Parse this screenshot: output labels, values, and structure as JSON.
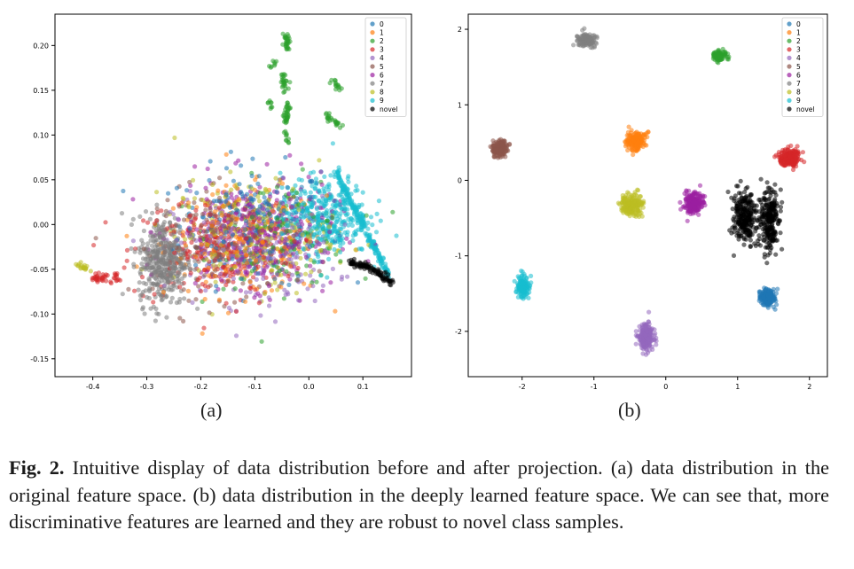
{
  "figure": {
    "subcaption_a": "(a)",
    "subcaption_b": "(b)",
    "caption_label": "Fig. 2.",
    "caption_text": "Intuitive display of data distribution before and after projection. (a) data distri­bution in the original feature space. (b) data distribution in the deeply learned feature space. We can see that, more discriminative features are learned and they are robust to novel class samples."
  },
  "colors": {
    "0": "#1f77b4",
    "1": "#ff7f0e",
    "2": "#2ca02c",
    "3": "#d62728",
    "4": "#9467bd",
    "5": "#8c564b",
    "6": "#9b1fa0",
    "7": "#7f7f7f",
    "8": "#bcbd22",
    "9": "#17becf",
    "novel": "#000000"
  },
  "chart_data": [
    {
      "type": "scatter",
      "panel": "a",
      "xlim": [
        -0.47,
        0.19
      ],
      "ylim": [
        -0.17,
        0.235
      ],
      "xticks": [
        "-0.4",
        "-0.3",
        "-0.2",
        "-0.1",
        "0.0",
        "0.1"
      ],
      "xtick_values": [
        -0.4,
        -0.3,
        -0.2,
        -0.1,
        0.0,
        0.1
      ],
      "yticks": [
        "0.20",
        "0.15",
        "0.10",
        "0.05",
        "0.00",
        "-0.05",
        "-0.10",
        "-0.15"
      ],
      "ytick_values": [
        0.2,
        0.15,
        0.1,
        0.05,
        0.0,
        -0.05,
        -0.1,
        -0.15
      ],
      "legend": [
        "0",
        "1",
        "2",
        "3",
        "4",
        "5",
        "6",
        "7",
        "8",
        "9",
        "novel"
      ],
      "legend_position": "top-right",
      "grid": false,
      "clusters": [
        {
          "name": "0",
          "center": [
            -0.1,
            0.0
          ],
          "spread": [
            0.14,
            0.065
          ],
          "n": 220
        },
        {
          "name": "1",
          "center": [
            -0.12,
            -0.02
          ],
          "spread": [
            0.15,
            0.06
          ],
          "n": 220
        },
        {
          "name": "2",
          "center": [
            -0.05,
            -0.01
          ],
          "spread": [
            0.13,
            0.06
          ],
          "n": 120
        },
        {
          "name": "3",
          "center": [
            -0.18,
            -0.03
          ],
          "spread": [
            0.15,
            0.06
          ],
          "n": 220
        },
        {
          "name": "4",
          "center": [
            -0.1,
            -0.03
          ],
          "spread": [
            0.15,
            0.06
          ],
          "n": 240
        },
        {
          "name": "5",
          "center": [
            -0.15,
            -0.02
          ],
          "spread": [
            0.13,
            0.06
          ],
          "n": 200
        },
        {
          "name": "6",
          "center": [
            -0.1,
            -0.01
          ],
          "spread": [
            0.15,
            0.06
          ],
          "n": 320
        },
        {
          "name": "7",
          "center": [
            -0.27,
            -0.04
          ],
          "spread": [
            0.045,
            0.05
          ],
          "n": 420
        },
        {
          "name": "8",
          "center": [
            -0.1,
            -0.01
          ],
          "spread": [
            0.15,
            0.06
          ],
          "n": 220
        },
        {
          "name": "9",
          "center": [
            0.03,
            0.01
          ],
          "spread": [
            0.08,
            0.045
          ],
          "n": 360
        }
      ],
      "streaks": [
        {
          "name": "2",
          "from": [
            -0.042,
            0.211
          ],
          "to": [
            -0.04,
            0.196
          ],
          "n": 30
        },
        {
          "name": "2",
          "from": [
            -0.047,
            0.168
          ],
          "to": [
            -0.044,
            0.15
          ],
          "n": 25
        },
        {
          "name": "2",
          "from": [
            -0.04,
            0.137
          ],
          "to": [
            -0.042,
            0.112
          ],
          "n": 35
        },
        {
          "name": "2",
          "from": [
            -0.06,
            0.181
          ],
          "to": [
            -0.072,
            0.178
          ],
          "n": 8
        },
        {
          "name": "2",
          "from": [
            -0.075,
            0.138
          ],
          "to": [
            -0.07,
            0.128
          ],
          "n": 8
        },
        {
          "name": "2",
          "from": [
            0.045,
            0.162
          ],
          "to": [
            0.06,
            0.15
          ],
          "n": 15
        },
        {
          "name": "2",
          "from": [
            0.03,
            0.122
          ],
          "to": [
            0.06,
            0.11
          ],
          "n": 25
        },
        {
          "name": "2",
          "from": [
            -0.042,
            0.105
          ],
          "to": [
            -0.04,
            0.09
          ],
          "n": 10
        },
        {
          "name": "9",
          "from": [
            0.05,
            0.06
          ],
          "to": [
            0.15,
            -0.06
          ],
          "n": 200
        },
        {
          "name": "8",
          "from": [
            -0.43,
            -0.045
          ],
          "to": [
            -0.41,
            -0.048
          ],
          "n": 20
        },
        {
          "name": "3",
          "from": [
            -0.4,
            -0.06
          ],
          "to": [
            -0.35,
            -0.06
          ],
          "n": 40
        },
        {
          "name": "novel",
          "from": [
            0.075,
            -0.042
          ],
          "to": [
            0.105,
            -0.046
          ],
          "n": 40
        },
        {
          "name": "novel",
          "from": [
            0.105,
            -0.046
          ],
          "to": [
            0.13,
            -0.055
          ],
          "n": 30
        },
        {
          "name": "novel",
          "from": [
            0.13,
            -0.055
          ],
          "to": [
            0.155,
            -0.066
          ],
          "n": 30
        }
      ]
    },
    {
      "type": "scatter",
      "panel": "b",
      "xlim": [
        -2.75,
        2.25
      ],
      "ylim": [
        -2.6,
        2.2
      ],
      "xticks": [
        "-2",
        "-1",
        "0",
        "1",
        "2"
      ],
      "xtick_values": [
        -2,
        -1,
        0,
        1,
        2
      ],
      "yticks": [
        "2",
        "1",
        "0",
        "-1",
        "-2"
      ],
      "ytick_values": [
        2,
        1,
        0,
        -1,
        -2
      ],
      "legend": [
        "0",
        "1",
        "2",
        "3",
        "4",
        "5",
        "6",
        "7",
        "8",
        "9",
        "novel"
      ],
      "legend_position": "top-right",
      "grid": false,
      "clusters": [
        {
          "name": "0",
          "center": [
            1.42,
            -1.55
          ],
          "spread": [
            0.11,
            0.11
          ],
          "n": 150
        },
        {
          "name": "1",
          "center": [
            -0.42,
            0.52
          ],
          "spread": [
            0.14,
            0.12
          ],
          "n": 180
        },
        {
          "name": "2",
          "center": [
            0.75,
            1.65
          ],
          "spread": [
            0.09,
            0.07
          ],
          "n": 80
        },
        {
          "name": "3",
          "center": [
            1.72,
            0.3
          ],
          "spread": [
            0.16,
            0.12
          ],
          "n": 200
        },
        {
          "name": "4",
          "center": [
            -0.28,
            -2.07
          ],
          "spread": [
            0.1,
            0.17
          ],
          "n": 200
        },
        {
          "name": "5",
          "center": [
            -2.3,
            0.42
          ],
          "spread": [
            0.1,
            0.12
          ],
          "n": 160
        },
        {
          "name": "6",
          "center": [
            0.38,
            -0.3
          ],
          "spread": [
            0.14,
            0.14
          ],
          "n": 180
        },
        {
          "name": "7",
          "center": [
            -1.1,
            1.86
          ],
          "spread": [
            0.12,
            0.08
          ],
          "n": 160
        },
        {
          "name": "8",
          "center": [
            -0.48,
            -0.32
          ],
          "spread": [
            0.15,
            0.14
          ],
          "n": 190
        },
        {
          "name": "9",
          "center": [
            -1.98,
            -1.4
          ],
          "spread": [
            0.09,
            0.14
          ],
          "n": 150
        },
        {
          "name": "novel",
          "center": [
            1.1,
            -0.5
          ],
          "spread": [
            0.16,
            0.35
          ],
          "n": 250
        },
        {
          "name": "novel",
          "center": [
            1.45,
            -0.55
          ],
          "spread": [
            0.12,
            0.4
          ],
          "n": 250
        }
      ]
    }
  ]
}
